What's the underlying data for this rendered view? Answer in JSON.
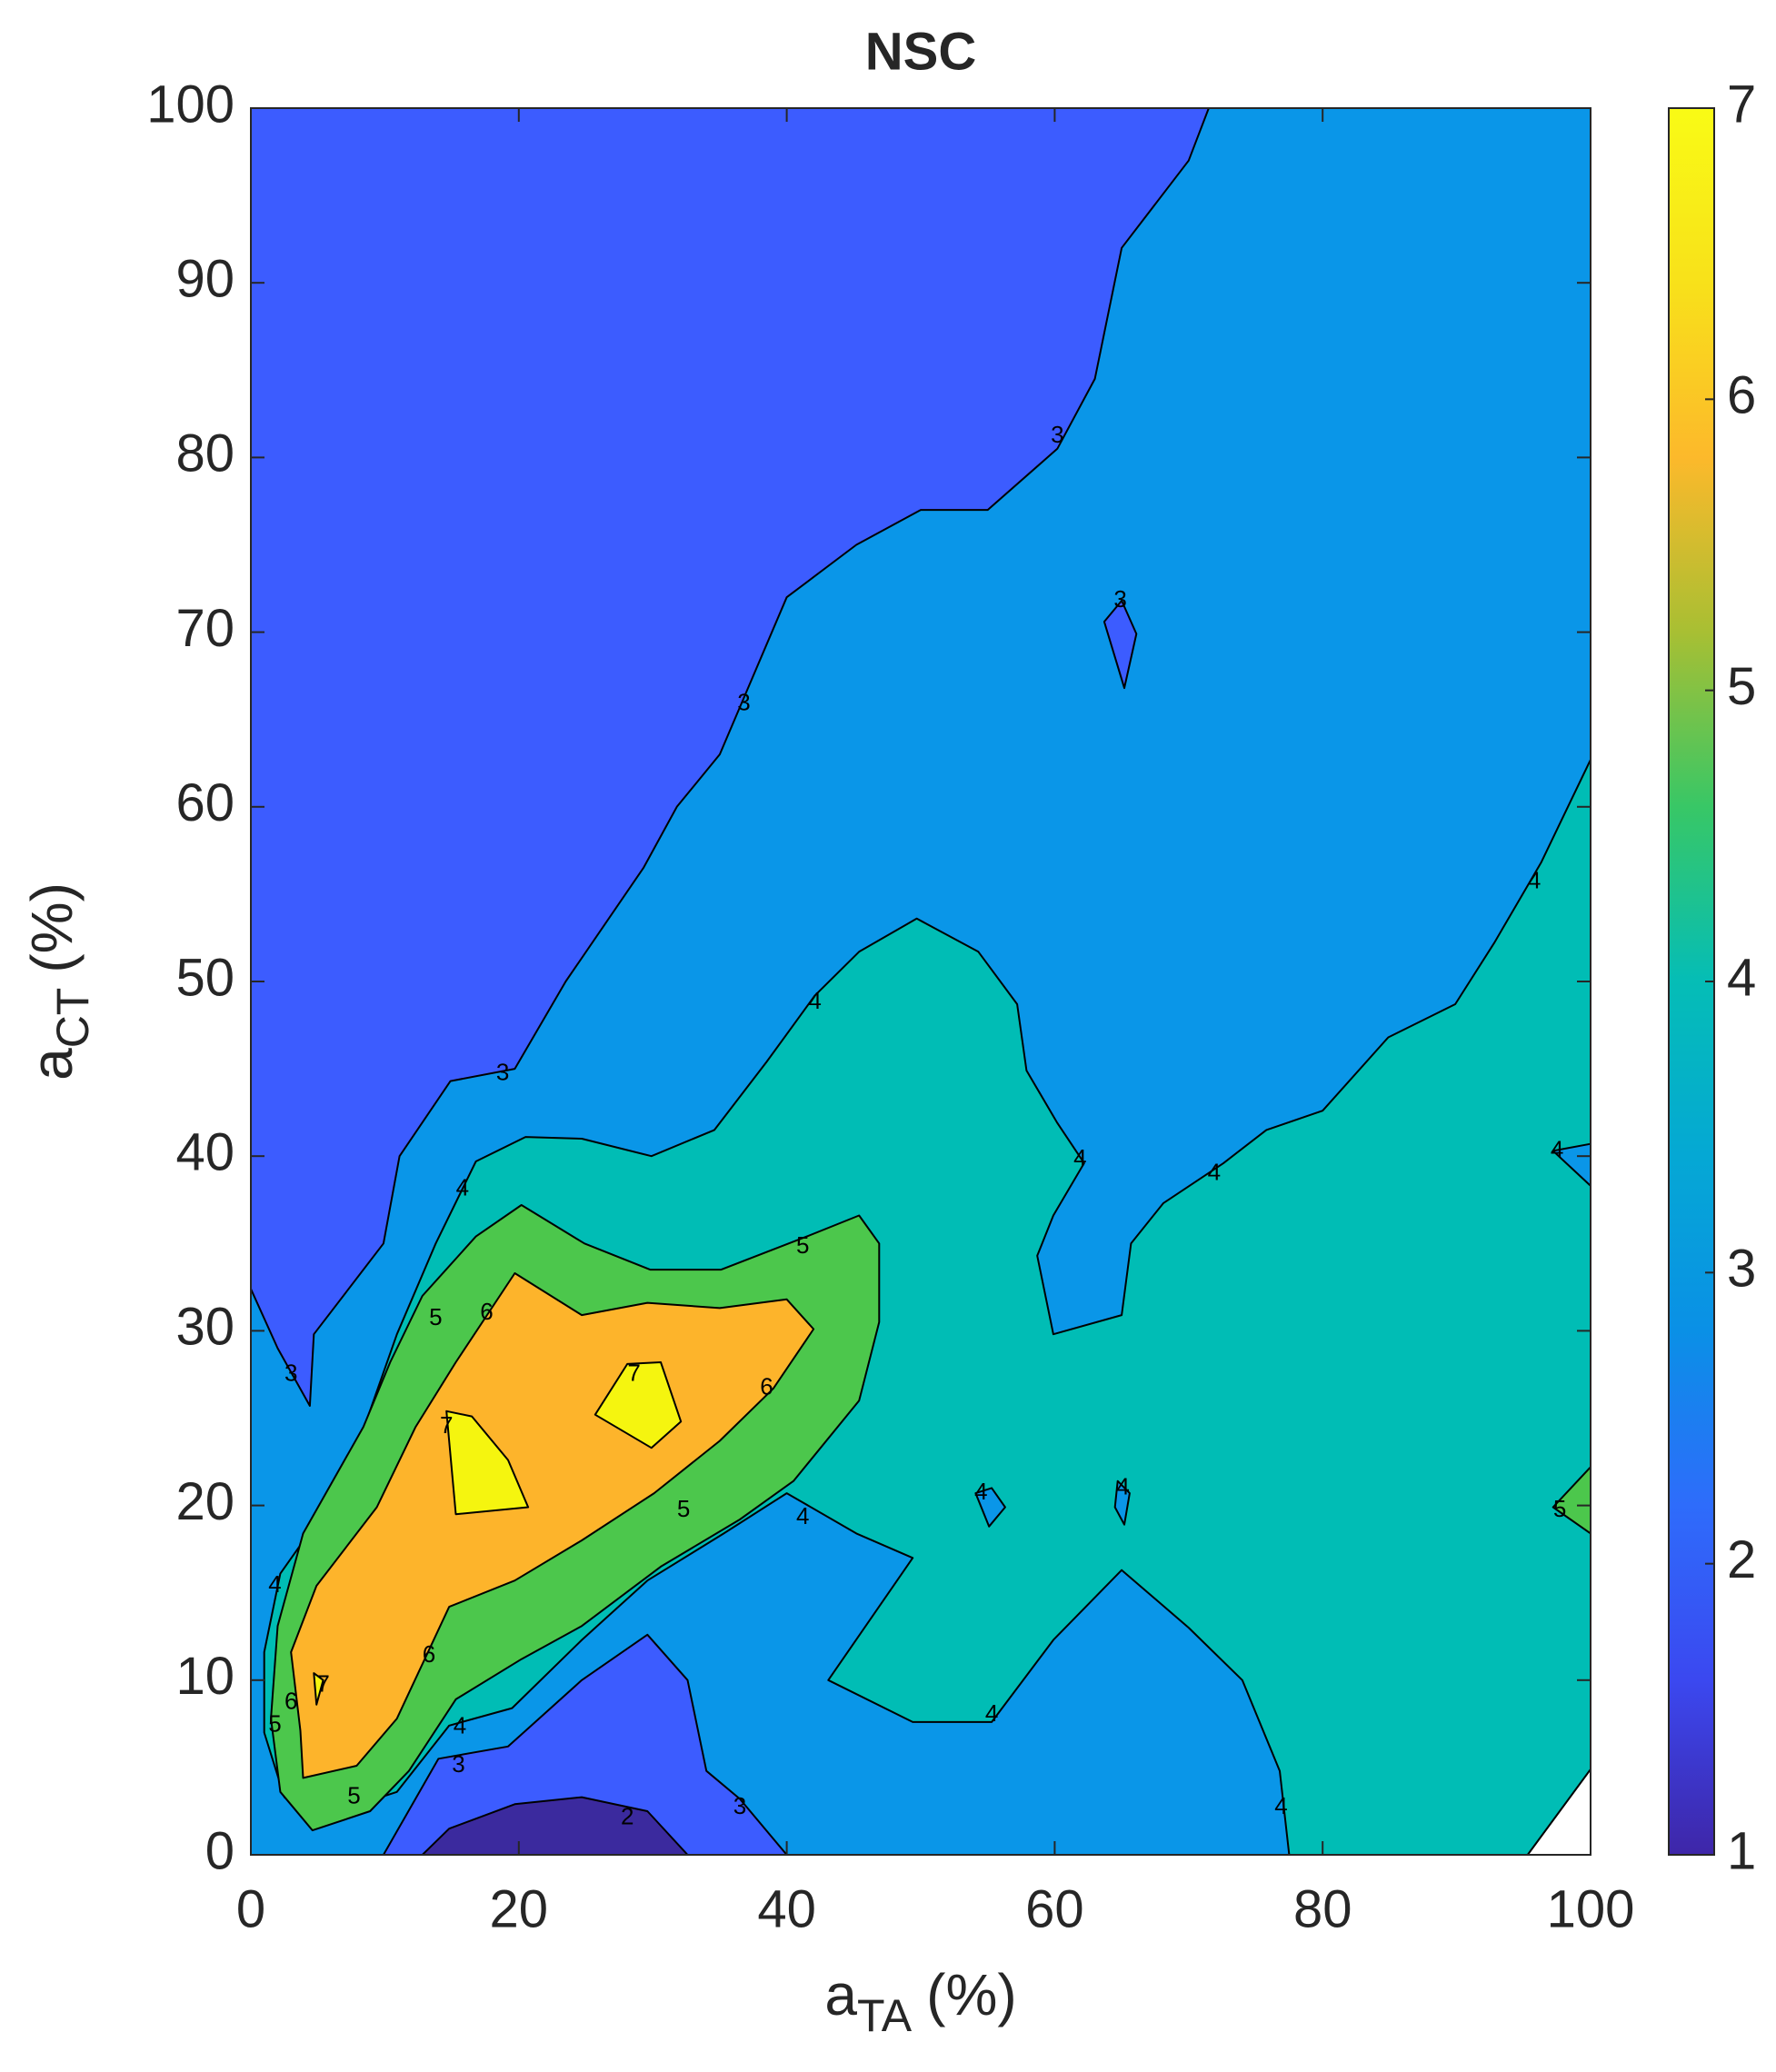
{
  "chart_data": {
    "type": "contourf",
    "title": "NSC",
    "xlabel": {
      "base": "a",
      "sub": "TA",
      "unit": "(%)"
    },
    "ylabel": {
      "base": "a",
      "sub": "CT",
      "unit": "(%)"
    },
    "xlim": [
      0,
      100
    ],
    "ylim": [
      0,
      100
    ],
    "xticks": [
      0,
      20,
      40,
      60,
      80,
      100
    ],
    "yticks": [
      0,
      10,
      20,
      30,
      40,
      50,
      60,
      70,
      80,
      90,
      100
    ],
    "colorbar": {
      "lim": [
        1,
        7
      ],
      "ticks": [
        1,
        2,
        3,
        4,
        5,
        6,
        7
      ],
      "colors": [
        "#3e26a8",
        "#3b48f0",
        "#2e6cfb",
        "#0a90e6",
        "#05a8d4",
        "#05bdb6",
        "#38c766",
        "#a8bf33",
        "#fcb92b",
        "#f8e11a",
        "#f9fb15"
      ]
    },
    "regions": [
      {
        "color": "#3c5cff",
        "x": [
          0,
          0,
          100,
          100,
          95.3
        ],
        "y": [
          0,
          100,
          100,
          4.9,
          0
        ]
      },
      {
        "color": "#3b2a9e",
        "x": [
          12.8,
          14.8,
          19.7,
          24.7,
          29.6,
          32.6
        ],
        "y": [
          0,
          1.5,
          2.9,
          3.3,
          2.5,
          0
        ]
      },
      {
        "color": "#0a96e8",
        "x": [
          71.5,
          70,
          65,
          63,
          60.2,
          55,
          50,
          45.2,
          40,
          35,
          31.8,
          29.3,
          23.5,
          19.7,
          14.9,
          11.1,
          9.9,
          4.7,
          4.4,
          2,
          0,
          0,
          9.9,
          14,
          19.2,
          24.7,
          29.6,
          32.6,
          34,
          36.5,
          40,
          95.3,
          100,
          100
        ],
        "y": [
          100,
          97,
          92,
          84.5,
          80.5,
          77,
          77,
          75,
          72,
          63,
          60,
          56.5,
          50,
          45,
          44.3,
          40,
          35,
          29.8,
          25.7,
          29,
          32.4,
          0,
          0,
          5.5,
          6.2,
          10,
          12.6,
          10,
          4.8,
          3.2,
          0,
          0,
          4.9,
          100
        ]
      },
      {
        "color": "#3c5cff",
        "x": [
          63.7,
          65,
          66.1,
          65.2
        ],
        "y": [
          70.6,
          71.8,
          69.9,
          66.8
        ]
      },
      {
        "color": "#00bdb5",
        "x": [
          77.5,
          76.8,
          74,
          70,
          65,
          59.9,
          55.3,
          49.4,
          43.1,
          49.4,
          45.2,
          40,
          35.3,
          29.6,
          24.7,
          19.5,
          14.8,
          10.9,
          4.9,
          2.5,
          1,
          1,
          2.2,
          5.7,
          8.1,
          10.9,
          13.8,
          16.8,
          20.5,
          24.7,
          29.9,
          34.6,
          38.5,
          42.1,
          45.4,
          49.7,
          54.3,
          57.2,
          57.9,
          60.2,
          62.2,
          59.9,
          58.7,
          59.9,
          65,
          65.7,
          68.1,
          72.6,
          75.8,
          80,
          84.9,
          89.9,
          92.8,
          96.3,
          100,
          100,
          95.3
        ],
        "y": [
          0,
          4.8,
          10,
          13,
          16.3,
          12.3,
          7.6,
          7.6,
          10,
          17,
          18.4,
          20.7,
          18.4,
          15.7,
          12.3,
          8.4,
          7.4,
          3.6,
          2.1,
          3.3,
          7,
          11.6,
          16.1,
          19.9,
          23.7,
          29.8,
          35,
          39.7,
          41.1,
          41,
          40,
          41.5,
          45.4,
          49.2,
          51.7,
          53.6,
          51.7,
          48.7,
          44.9,
          41.9,
          39.6,
          36.6,
          34.3,
          29.8,
          30.9,
          35,
          37.3,
          39.6,
          41.5,
          42.6,
          46.8,
          48.7,
          52.2,
          56.8,
          62.7,
          4.9,
          0
        ]
      },
      {
        "color": "#0a96e8",
        "x": [
          54.1,
          55.3,
          56.3,
          55.1
        ],
        "y": [
          20.7,
          21,
          19.9,
          18.8
        ]
      },
      {
        "color": "#0a96e8",
        "x": [
          64.7,
          65.6,
          65.2,
          64.5
        ],
        "y": [
          21.4,
          20.7,
          18.9,
          19.9
        ]
      },
      {
        "color": "#0a96e8",
        "x": [
          97.2,
          100,
          100
        ],
        "y": [
          40.3,
          40.7,
          38.3
        ]
      },
      {
        "color": "#4cc74c",
        "x": [
          4.6,
          8.9,
          11.8,
          15.3,
          20.2,
          24.7,
          30.6,
          36.5,
          40.5,
          45.4,
          46.9,
          46.9,
          45.4,
          41.5,
          35.1,
          29.8,
          24.9,
          20.2,
          16.8,
          12.8,
          10.4,
          8.4,
          3.9,
          2,
          1.5,
          2.2
        ],
        "y": [
          1.4,
          2.5,
          4.8,
          8.9,
          11.2,
          13.1,
          16.5,
          19.2,
          21.4,
          26,
          30.5,
          35,
          36.6,
          35.4,
          33.5,
          33.5,
          35,
          37.2,
          35.4,
          32,
          28.2,
          24.5,
          18.4,
          13.1,
          7.8,
          3.6
        ]
      },
      {
        "color": "#4cc74c",
        "x": [
          97.2,
          100,
          100
        ],
        "y": [
          19.9,
          22.2,
          18.4
        ]
      },
      {
        "color": "#fdb42b",
        "x": [
          3.9,
          7.9,
          10.9,
          14.8,
          19.7,
          24.7,
          30.1,
          35,
          39,
          42,
          40,
          35,
          29.6,
          24.7,
          19.7,
          15.3,
          12.3,
          9.4,
          4.9,
          3,
          3.7
        ],
        "y": [
          4.4,
          5.1,
          7.8,
          14.2,
          15.7,
          18,
          20.7,
          23.7,
          26.7,
          30.1,
          31.8,
          31.3,
          31.6,
          30.9,
          33.3,
          28.2,
          24.5,
          19.9,
          15.4,
          11.6,
          7.1
        ]
      },
      {
        "color": "#f5f50f",
        "x": [
          14.6,
          16.5,
          19.2,
          20.7,
          15.3
        ],
        "y": [
          25.4,
          25.1,
          22.6,
          19.9,
          19.5
        ]
      },
      {
        "color": "#f5f50f",
        "x": [
          25.7,
          28.1,
          30.6,
          32.1,
          29.9
        ],
        "y": [
          25.2,
          28.1,
          28.2,
          24.8,
          23.3
        ]
      },
      {
        "color": "#f5f50f",
        "x": [
          4.7,
          5.4,
          4.9
        ],
        "y": [
          10.4,
          10,
          8.6
        ]
      }
    ],
    "contour_labels": [
      {
        "value": 3,
        "x": 60.2,
        "y": 81.2
      },
      {
        "value": 3,
        "x": 64.9,
        "y": 71.8
      },
      {
        "value": 3,
        "x": 36.8,
        "y": 65.9
      },
      {
        "value": 3,
        "x": 18.8,
        "y": 44.7
      },
      {
        "value": 3,
        "x": 3,
        "y": 27.5
      },
      {
        "value": 3,
        "x": 15.5,
        "y": 5.1
      },
      {
        "value": 3,
        "x": 36.5,
        "y": 2.7
      },
      {
        "value": 2,
        "x": 28.1,
        "y": 2.1
      },
      {
        "value": 4,
        "x": 42.1,
        "y": 48.8
      },
      {
        "value": 4,
        "x": 15.8,
        "y": 38.1
      },
      {
        "value": 4,
        "x": 61.9,
        "y": 39.8
      },
      {
        "value": 4,
        "x": 71.9,
        "y": 39
      },
      {
        "value": 4,
        "x": 95.8,
        "y": 55.7
      },
      {
        "value": 4,
        "x": 1.8,
        "y": 15.4
      },
      {
        "value": 4,
        "x": 15.6,
        "y": 7.3
      },
      {
        "value": 4,
        "x": 41.2,
        "y": 19.3
      },
      {
        "value": 4,
        "x": 55.3,
        "y": 8
      },
      {
        "value": 4,
        "x": 76.9,
        "y": 2.7
      },
      {
        "value": 4,
        "x": 54.5,
        "y": 20.7
      },
      {
        "value": 4,
        "x": 65.1,
        "y": 21
      },
      {
        "value": 4,
        "x": 97.5,
        "y": 40.3
      },
      {
        "value": 5,
        "x": 13.8,
        "y": 30.7
      },
      {
        "value": 5,
        "x": 41.2,
        "y": 34.8
      },
      {
        "value": 5,
        "x": 32.3,
        "y": 19.7
      },
      {
        "value": 5,
        "x": 1.8,
        "y": 7.4
      },
      {
        "value": 5,
        "x": 7.7,
        "y": 3.3
      },
      {
        "value": 5,
        "x": 97.7,
        "y": 19.7
      },
      {
        "value": 6,
        "x": 17.6,
        "y": 31
      },
      {
        "value": 6,
        "x": 38.5,
        "y": 26.7
      },
      {
        "value": 6,
        "x": 13.3,
        "y": 11.4
      },
      {
        "value": 6,
        "x": 3,
        "y": 8.7
      },
      {
        "value": 7,
        "x": 28.6,
        "y": 27.5
      },
      {
        "value": 7,
        "x": 14.6,
        "y": 24.5
      },
      {
        "value": 7,
        "x": 5.4,
        "y": 9.7
      }
    ]
  }
}
